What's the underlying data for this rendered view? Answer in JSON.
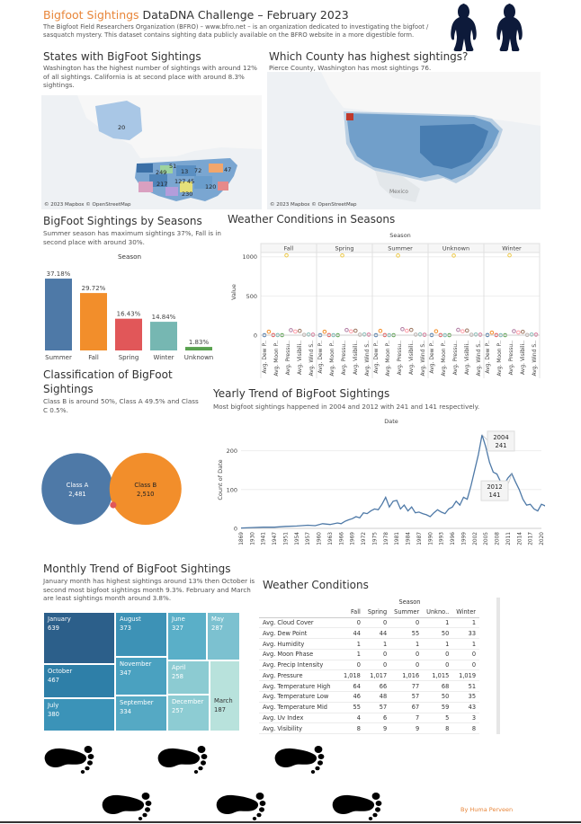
{
  "header": {
    "title_accent": "Bigfoot Sightings",
    "title_rest": " DataDNA Challenge – February 2023",
    "desc": "The Bigfoot Field Researchers Organization (BFRO) – www.bfro.net – is an organization dedicated to investigating the bigfoot / sasquatch mystery. This dataset contains sighting data publicly available on the BFRO website in a more digestible form."
  },
  "states": {
    "title": "States with BigFoot Sightings",
    "subtitle": "Washington has the highest number of sightings with around 12% of all sightings. California is at second place with around 8.3% sightings.",
    "credit": "© 2023 Mapbox © OpenStreetMap",
    "labels": [
      "20",
      "51",
      "13",
      "72",
      "249",
      "127",
      "45",
      "217",
      "230",
      "120",
      "47"
    ]
  },
  "county": {
    "title": "Which County has highest sightings?",
    "subtitle": "Pierce County, Washington has most sightings 76.",
    "credit": "© 2023 Mapbox © OpenStreetMap",
    "place_labels": [
      "Mexico"
    ]
  },
  "seasons": {
    "title": "BigFoot Sightings by Seasons",
    "subtitle": "Summer season has maximum sightings 37%, Fall is in second place with around 30%."
  },
  "weather_seasons": {
    "title": "Weather Conditions in Seasons"
  },
  "classification": {
    "title": "Classification of BigFoot Sightings",
    "subtitle": "Class B is around 50%, Class A 49.5% and Class C 0.5%."
  },
  "yearly": {
    "title": "Yearly Trend of BigFoot Sightings",
    "subtitle": "Most bigfoot sightings happened in 2004 and 2012 with 241 and 141 respectively."
  },
  "monthly": {
    "title": "Monthly Trend of BigFoot Sightings",
    "subtitle": "January month has highest sightings around 13% then October is second most bigfoot sightings month 9.3%. February and March are least sightings month around 3.8%."
  },
  "weather_table": {
    "title": "Weather Conditions",
    "group_header": "Season",
    "columns": [
      "Fall",
      "Spring",
      "Summer",
      "Unkno..",
      "Winter"
    ],
    "rows": [
      {
        "label": "Avg. Cloud Cover",
        "values": [
          "0",
          "0",
          "0",
          "1",
          "1"
        ]
      },
      {
        "label": "Avg. Dew Point",
        "values": [
          "44",
          "44",
          "55",
          "50",
          "33"
        ]
      },
      {
        "label": "Avg. Humidity",
        "values": [
          "1",
          "1",
          "1",
          "1",
          "1"
        ]
      },
      {
        "label": "Avg. Moon Phase",
        "values": [
          "1",
          "0",
          "0",
          "0",
          "0"
        ]
      },
      {
        "label": "Avg. Precip Intensity",
        "values": [
          "0",
          "0",
          "0",
          "0",
          "0"
        ]
      },
      {
        "label": "Avg. Pressure",
        "values": [
          "1,018",
          "1,017",
          "1,016",
          "1,015",
          "1,019"
        ]
      },
      {
        "label": "Avg. Temperature High",
        "values": [
          "64",
          "66",
          "77",
          "68",
          "51"
        ]
      },
      {
        "label": "Avg. Temperature Low",
        "values": [
          "46",
          "48",
          "57",
          "50",
          "35"
        ]
      },
      {
        "label": "Avg. Temperature Mid",
        "values": [
          "55",
          "57",
          "67",
          "59",
          "43"
        ]
      },
      {
        "label": "Avg. Uv Index",
        "values": [
          "4",
          "6",
          "7",
          "5",
          "3"
        ]
      },
      {
        "label": "Avg. Visibility",
        "values": [
          "8",
          "9",
          "9",
          "8",
          "8"
        ]
      }
    ]
  },
  "footer": {
    "author": "By Huma Perveen"
  },
  "chart_data": [
    {
      "id": "seasons",
      "type": "bar",
      "title": "Season",
      "categories": [
        "Summer",
        "Fall",
        "Spring",
        "Winter",
        "Unknown"
      ],
      "values": [
        37.18,
        29.72,
        16.43,
        14.84,
        1.83
      ],
      "labels": [
        "37.18%",
        "29.72%",
        "16.43%",
        "14.84%",
        "1.83%"
      ],
      "colors": [
        "#4e79a7",
        "#f28e2b",
        "#e15759",
        "#76b7b2",
        "#59a14f"
      ]
    },
    {
      "id": "weather_seasons",
      "type": "scatter",
      "title": "Season",
      "ylabel": "Value",
      "yticks": [
        0,
        500,
        1000
      ],
      "ylim": [
        0,
        1100
      ],
      "panels": [
        "Fall",
        "Spring",
        "Summer",
        "Unknown",
        "Winter"
      ],
      "measures": [
        "Avg. Cloud Cover",
        "Avg. Dew Point",
        "Avg. Humidity",
        "Avg. Moon Phase",
        "Avg. Precip Intensity",
        "Avg. Pressure",
        "Avg. Temperature High",
        "Avg. Temperature Low",
        "Avg. Temperature Mid",
        "Avg. Uv Index",
        "Avg. Visibility",
        "Avg. Wind Speed"
      ],
      "measure_labels": [
        "Avg. Dew P..",
        "Avg. Moon P..",
        "Avg. Pressu..",
        "Avg. Visibili..",
        "Avg. Wind S.."
      ],
      "colors": [
        "#4e79a7",
        "#f28e2b",
        "#e15759",
        "#76b7b2",
        "#59a14f",
        "#edc948",
        "#b07aa1",
        "#ff9da7",
        "#9c755f",
        "#bab0ac",
        "#86bcb6",
        "#d37295"
      ],
      "values": {
        "Fall": [
          0,
          44,
          1,
          1,
          0,
          1018,
          64,
          46,
          55,
          4,
          8,
          6
        ],
        "Spring": [
          0,
          44,
          1,
          0,
          0,
          1017,
          66,
          48,
          57,
          6,
          9,
          7
        ],
        "Summer": [
          0,
          55,
          1,
          0,
          0,
          1016,
          77,
          57,
          67,
          7,
          9,
          5
        ],
        "Unknown": [
          1,
          50,
          1,
          0,
          0,
          1015,
          68,
          50,
          59,
          5,
          8,
          6
        ],
        "Winter": [
          1,
          33,
          1,
          0,
          0,
          1019,
          51,
          35,
          43,
          3,
          8,
          7
        ]
      }
    },
    {
      "id": "classification",
      "type": "bubble",
      "series": [
        {
          "name": "Class A",
          "value": 2481,
          "label": "2,481",
          "color": "#4e79a7"
        },
        {
          "name": "Class B",
          "value": 2510,
          "label": "2,510",
          "color": "#f28e2b"
        },
        {
          "name": "Class C",
          "value": 25,
          "label": "",
          "color": "#e15759"
        }
      ]
    },
    {
      "id": "yearly",
      "type": "line",
      "title": "Date",
      "ylabel": "Count of Date",
      "ylim": [
        0,
        250
      ],
      "yticks": [
        0,
        100,
        200
      ],
      "xticks": [
        1869,
        1930,
        1941,
        1947,
        1951,
        1954,
        1957,
        1960,
        1963,
        1966,
        1969,
        1972,
        1975,
        1978,
        1981,
        1984,
        1987,
        1990,
        1993,
        1996,
        1999,
        2002,
        2005,
        2008,
        2011,
        2014,
        2017,
        2020
      ],
      "color": "#4e79a7",
      "x": [
        1869,
        1930,
        1941,
        1947,
        1951,
        1954,
        1957,
        1959,
        1961,
        1963,
        1965,
        1966,
        1967,
        1968,
        1969,
        1970,
        1971,
        1972,
        1973,
        1974,
        1975,
        1976,
        1977,
        1978,
        1979,
        1980,
        1981,
        1982,
        1983,
        1984,
        1985,
        1986,
        1987,
        1988,
        1989,
        1990,
        1991,
        1992,
        1993,
        1994,
        1995,
        1996,
        1997,
        1998,
        1999,
        2000,
        2001,
        2002,
        2003,
        2004,
        2005,
        2006,
        2007,
        2008,
        2009,
        2010,
        2011,
        2012,
        2013,
        2014,
        2015,
        2016,
        2017,
        2018,
        2019,
        2020,
        2021,
        2022
      ],
      "y": [
        1,
        2,
        3,
        3,
        5,
        6,
        8,
        7,
        12,
        10,
        14,
        12,
        18,
        22,
        25,
        30,
        27,
        40,
        38,
        45,
        50,
        48,
        62,
        80,
        55,
        70,
        72,
        50,
        60,
        45,
        55,
        40,
        42,
        38,
        35,
        30,
        40,
        48,
        42,
        38,
        50,
        55,
        70,
        60,
        80,
        75,
        110,
        150,
        190,
        241,
        210,
        170,
        145,
        140,
        120,
        115,
        130,
        141,
        120,
        100,
        75,
        60,
        62,
        50,
        45,
        62,
        58,
        35
      ],
      "annotations": [
        {
          "x": 2004,
          "y": 241,
          "line1": "2004",
          "line2": "241"
        },
        {
          "x": 2012,
          "y": 141,
          "line1": "2012",
          "line2": "141"
        }
      ]
    },
    {
      "id": "monthly",
      "type": "treemap",
      "items": [
        {
          "name": "January",
          "value": 639,
          "color": "#2c5f8a"
        },
        {
          "name": "October",
          "value": 467,
          "color": "#2e7fa8"
        },
        {
          "name": "July",
          "value": 380,
          "color": "#3b93b8"
        },
        {
          "name": "August",
          "value": 373,
          "color": "#3d92b6"
        },
        {
          "name": "November",
          "value": 347,
          "color": "#4aa1c0"
        },
        {
          "name": "September",
          "value": 334,
          "color": "#55a9c4"
        },
        {
          "name": "June",
          "value": 327,
          "color": "#5aafc8"
        },
        {
          "name": "May",
          "value": 287,
          "color": "#7cc1d0"
        },
        {
          "name": "April",
          "value": 258,
          "color": "#8ccbd2"
        },
        {
          "name": "December",
          "value": 257,
          "color": "#8dccd3"
        },
        {
          "name": "March",
          "value": 187,
          "color": "#b8e2dc"
        }
      ]
    }
  ]
}
